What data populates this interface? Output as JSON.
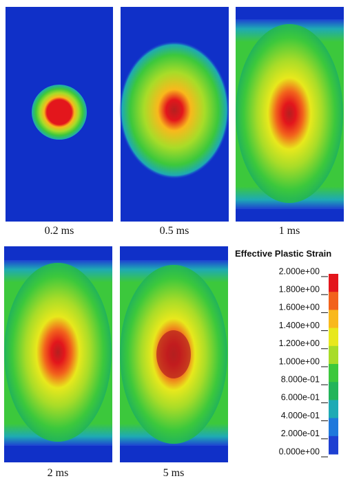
{
  "panels": [
    {
      "label": "0.2 ms"
    },
    {
      "label": "0.5 ms"
    },
    {
      "label": "1 ms"
    },
    {
      "label": "2 ms"
    },
    {
      "label": "5 ms"
    }
  ],
  "legend": {
    "title": "Effective Plastic Strain",
    "ticks": [
      "2.000e+00",
      "1.800e+00",
      "1.600e+00",
      "1.400e+00",
      "1.200e+00",
      "1.000e+00",
      "8.000e-01",
      "6.000e-01",
      "4.000e-01",
      "2.000e-01",
      "0.000e+00"
    ],
    "colors": [
      "#e3161c",
      "#f2621c",
      "#f9b81c",
      "#e8e81c",
      "#a8dc28",
      "#3cc83c",
      "#22b45a",
      "#1eaab4",
      "#1e78dc",
      "#1e40d2"
    ]
  }
}
